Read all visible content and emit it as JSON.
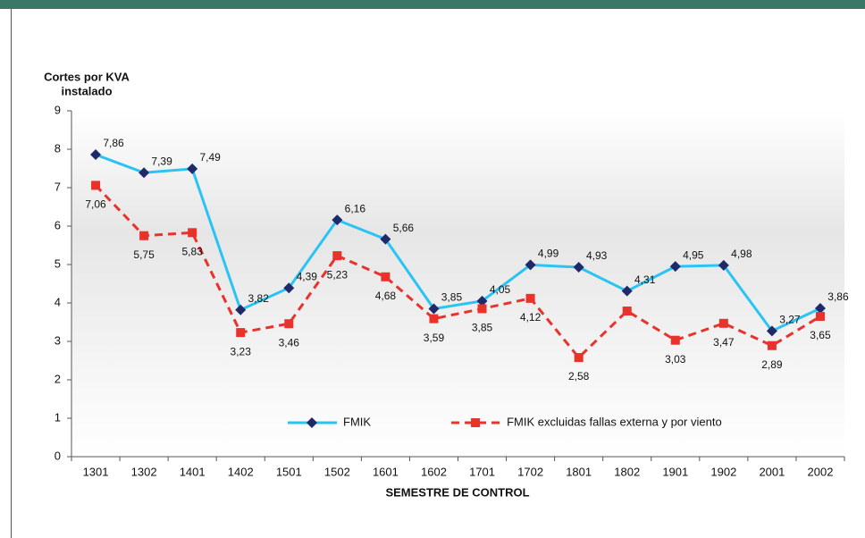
{
  "chart_data": {
    "type": "line",
    "ylabel": [
      "Cortes por KVA",
      "instalado"
    ],
    "xlabel": "SEMESTRE DE CONTROL",
    "categories": [
      "1301",
      "1302",
      "1401",
      "1402",
      "1501",
      "1502",
      "1601",
      "1602",
      "1701",
      "1702",
      "1801",
      "1802",
      "1901",
      "1902",
      "2001",
      "2002"
    ],
    "series": [
      {
        "name": "FMIK",
        "color": "#29c4f4",
        "marker_color": "#1f2a6b",
        "dashed": false,
        "values": [
          7.86,
          7.39,
          7.49,
          3.82,
          4.39,
          6.16,
          5.66,
          3.85,
          4.05,
          4.99,
          4.93,
          4.31,
          4.95,
          4.98,
          3.27,
          3.86
        ],
        "value_labels": [
          "7,86",
          "7,39",
          "7,49",
          "3,82",
          "4,39",
          "6,16",
          "5,66",
          "3,85",
          "4,05",
          "4,99",
          "4,93",
          "4,31",
          "4,95",
          "4,98",
          "3,27",
          "3,86"
        ]
      },
      {
        "name": "FMIK excluidas fallas externa y por viento",
        "color": "#e8322b",
        "marker_color": "#e8322b",
        "dashed": true,
        "values": [
          7.06,
          5.75,
          5.83,
          3.23,
          3.46,
          5.23,
          4.68,
          3.59,
          3.85,
          4.12,
          2.58,
          3.79,
          3.03,
          3.47,
          2.89,
          3.65
        ],
        "value_labels": [
          "7,06",
          "5,75",
          "5,83",
          "3,23",
          "3,46",
          "5,23",
          "4,68",
          "3,59",
          "3,85",
          "4,12",
          "2,58",
          null,
          "3,03",
          "3,47",
          "2,89",
          "3,65"
        ]
      }
    ],
    "ylim": [
      0,
      9
    ],
    "yticks": [
      0,
      1,
      2,
      3,
      4,
      5,
      6,
      7,
      8,
      9
    ],
    "grid": false,
    "legend": "bottom"
  }
}
